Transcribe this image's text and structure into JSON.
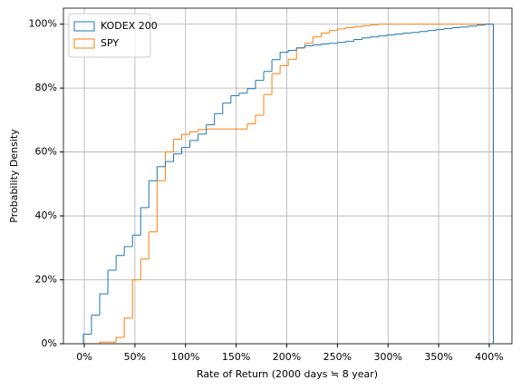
{
  "chart_data": {
    "type": "histogram",
    "cumulative": true,
    "xlabel": "Rate of Return (2000 days ≒ 8 year)",
    "ylabel": "Probability Density",
    "bins": [
      -1,
      7.1,
      15.2,
      23.3,
      31.4,
      39.5,
      47.6,
      55.7,
      63.8,
      71.9,
      80,
      88.1,
      96.2,
      104.3,
      112.4,
      120.5,
      128.6,
      136.7,
      144.8,
      152.9,
      161,
      169.1,
      177.2,
      185.3,
      193.4,
      201.5,
      209.6,
      217.7,
      225.8,
      233.9,
      242,
      250.1,
      258.2,
      266.3,
      274.4,
      282.5,
      290.6,
      298.7,
      306.8,
      314.9,
      323,
      331.1,
      339.2,
      347.3,
      355.4,
      363.5,
      371.6,
      379.7,
      387.8,
      395.9,
      404
    ],
    "series": [
      {
        "name": "KODEX 200",
        "color": "#1f77b4",
        "values": [
          3,
          9,
          15.6,
          23,
          27.6,
          30.4,
          34,
          42.6,
          51,
          55.4,
          57,
          59.4,
          61.4,
          63.6,
          65.6,
          68.5,
          72,
          75.3,
          77.6,
          78.4,
          79.8,
          82.4,
          85.2,
          88.9,
          91.2,
          91.8,
          92.6,
          93.2,
          93.5,
          93.8,
          94,
          94.3,
          94.6,
          95.2,
          95.7,
          96,
          96.3,
          96.6,
          96.9,
          97.2,
          97.4,
          97.7,
          98,
          98.3,
          98.6,
          98.9,
          99.1,
          99.4,
          99.7,
          100
        ]
      },
      {
        "name": "SPY",
        "color": "#ff7f0e",
        "values": [
          0,
          0,
          0.5,
          0.5,
          2,
          8,
          20,
          26.5,
          35,
          51,
          60,
          64,
          65.5,
          66.3,
          67,
          67.2,
          67.2,
          67.2,
          67.2,
          67.2,
          68.8,
          71.5,
          78,
          84.5,
          87,
          89,
          92.5,
          94,
          96,
          97.2,
          98,
          98.5,
          98.9,
          99.2,
          99.5,
          99.8,
          100,
          100,
          100,
          100,
          100,
          100,
          100,
          100,
          100,
          100,
          100,
          100,
          100,
          100
        ]
      }
    ],
    "xlim": [
      -20.6,
      422.4
    ],
    "xticks": [
      {
        "value": 0,
        "label": "0%"
      },
      {
        "value": 50,
        "label": "50%"
      },
      {
        "value": 100,
        "label": "100%"
      },
      {
        "value": 150,
        "label": "150%"
      },
      {
        "value": 200,
        "label": "200%"
      },
      {
        "value": 250,
        "label": "250%"
      },
      {
        "value": 300,
        "label": "300%"
      },
      {
        "value": 350,
        "label": "350%"
      },
      {
        "value": 400,
        "label": "400%"
      }
    ],
    "ylim": [
      0,
      105
    ],
    "yticks": [
      {
        "value": 0,
        "label": "0%"
      },
      {
        "value": 20,
        "label": "20%"
      },
      {
        "value": 40,
        "label": "40%"
      },
      {
        "value": 60,
        "label": "60%"
      },
      {
        "value": 80,
        "label": "80%"
      },
      {
        "value": 100,
        "label": "100%"
      }
    ],
    "grid": true,
    "legend": "upper left"
  }
}
